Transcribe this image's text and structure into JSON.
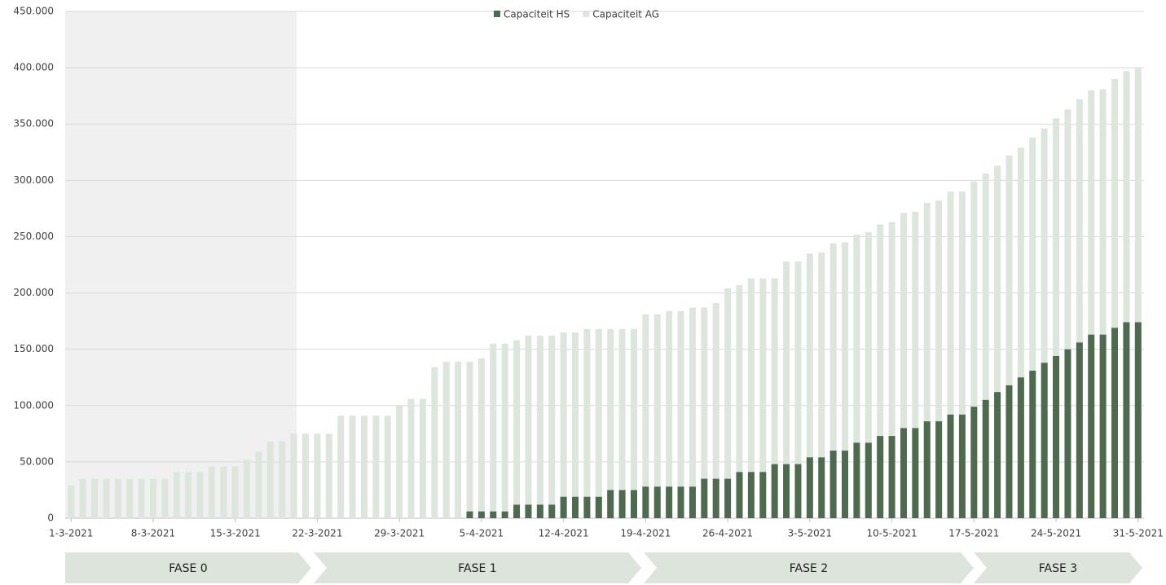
{
  "chart_data": {
    "type": "bar",
    "categories": [
      "1-3-2021",
      null,
      null,
      null,
      null,
      null,
      null,
      "8-3-2021",
      null,
      null,
      null,
      null,
      null,
      null,
      "15-3-2021",
      null,
      null,
      null,
      null,
      null,
      null,
      "22-3-2021",
      null,
      null,
      null,
      null,
      null,
      null,
      "29-3-2021",
      null,
      null,
      null,
      null,
      null,
      null,
      "5-4-2021",
      null,
      null,
      null,
      null,
      null,
      null,
      "12-4-2021",
      null,
      null,
      null,
      null,
      null,
      null,
      "19-4-2021",
      null,
      null,
      null,
      null,
      null,
      null,
      "26-4-2021",
      null,
      null,
      null,
      null,
      null,
      null,
      "3-5-2021",
      null,
      null,
      null,
      null,
      null,
      null,
      "10-5-2021",
      null,
      null,
      null,
      null,
      null,
      null,
      "17-5-2021",
      null,
      null,
      null,
      null,
      null,
      null,
      "24-5-2021",
      null,
      null,
      null,
      null,
      null,
      null,
      "31-5-2021"
    ],
    "series": [
      {
        "name": "Capaciteit HS",
        "color": "#4f6b4f",
        "values": [
          null,
          null,
          null,
          null,
          null,
          null,
          null,
          null,
          null,
          null,
          null,
          null,
          null,
          null,
          null,
          null,
          null,
          null,
          null,
          null,
          null,
          null,
          null,
          null,
          null,
          null,
          null,
          null,
          null,
          null,
          null,
          null,
          null,
          null,
          6000,
          6000,
          6000,
          6000,
          12000,
          12000,
          12000,
          12000,
          19000,
          19000,
          19000,
          19000,
          25000,
          25000,
          25000,
          28000,
          28000,
          28000,
          28000,
          28000,
          35000,
          35000,
          35000,
          41000,
          41000,
          41000,
          48000,
          48000,
          48000,
          54000,
          54000,
          60000,
          60000,
          67000,
          67000,
          73000,
          73000,
          80000,
          80000,
          86000,
          86000,
          92000,
          92000,
          99000,
          105000,
          112000,
          118000,
          125000,
          131000,
          138000,
          144000,
          150000,
          156000,
          163000,
          163000,
          169000,
          174000,
          174000
        ]
      },
      {
        "name": "Capaciteit AG",
        "color": "#dde6dc",
        "values": [
          29000,
          35000,
          35000,
          35000,
          35000,
          35000,
          35000,
          35000,
          35000,
          41000,
          41000,
          41000,
          46000,
          46000,
          46000,
          52000,
          59000,
          68000,
          68000,
          75000,
          75000,
          75000,
          75000,
          91000,
          91000,
          91000,
          91000,
          91000,
          100000,
          106000,
          106000,
          134000,
          139000,
          139000,
          139000,
          142000,
          155000,
          155000,
          158000,
          162000,
          162000,
          162000,
          165000,
          165000,
          168000,
          168000,
          168000,
          168000,
          168000,
          181000,
          181000,
          184000,
          184000,
          187000,
          187000,
          191000,
          204000,
          207000,
          213000,
          213000,
          213000,
          228000,
          228000,
          235000,
          236000,
          244000,
          245000,
          252000,
          254000,
          261000,
          263000,
          271000,
          272000,
          280000,
          282000,
          290000,
          290000,
          299000,
          306000,
          313000,
          322000,
          329000,
          338000,
          346000,
          355000,
          363000,
          372000,
          380000,
          381000,
          390000,
          397000,
          400000
        ]
      }
    ],
    "ylim": [
      0,
      450000
    ],
    "yticks": [
      0,
      {
        "value": 50000,
        "label": "50.000"
      },
      {
        "value": 100000,
        "label": "100.000"
      },
      {
        "value": 150000,
        "label": "150.000"
      },
      {
        "value": 200000,
        "label": "200.000"
      },
      {
        "value": 250000,
        "label": "250.000"
      },
      {
        "value": 300000,
        "label": "300.000"
      },
      {
        "value": 350000,
        "label": "350.000"
      },
      {
        "value": 400000,
        "label": "400.000"
      },
      {
        "value": 450000,
        "label": "450.000"
      }
    ],
    "grid": true,
    "legend": "top",
    "phases": [
      "FASE 0",
      "FASE 1",
      "FASE 2",
      "FASE 3"
    ]
  }
}
